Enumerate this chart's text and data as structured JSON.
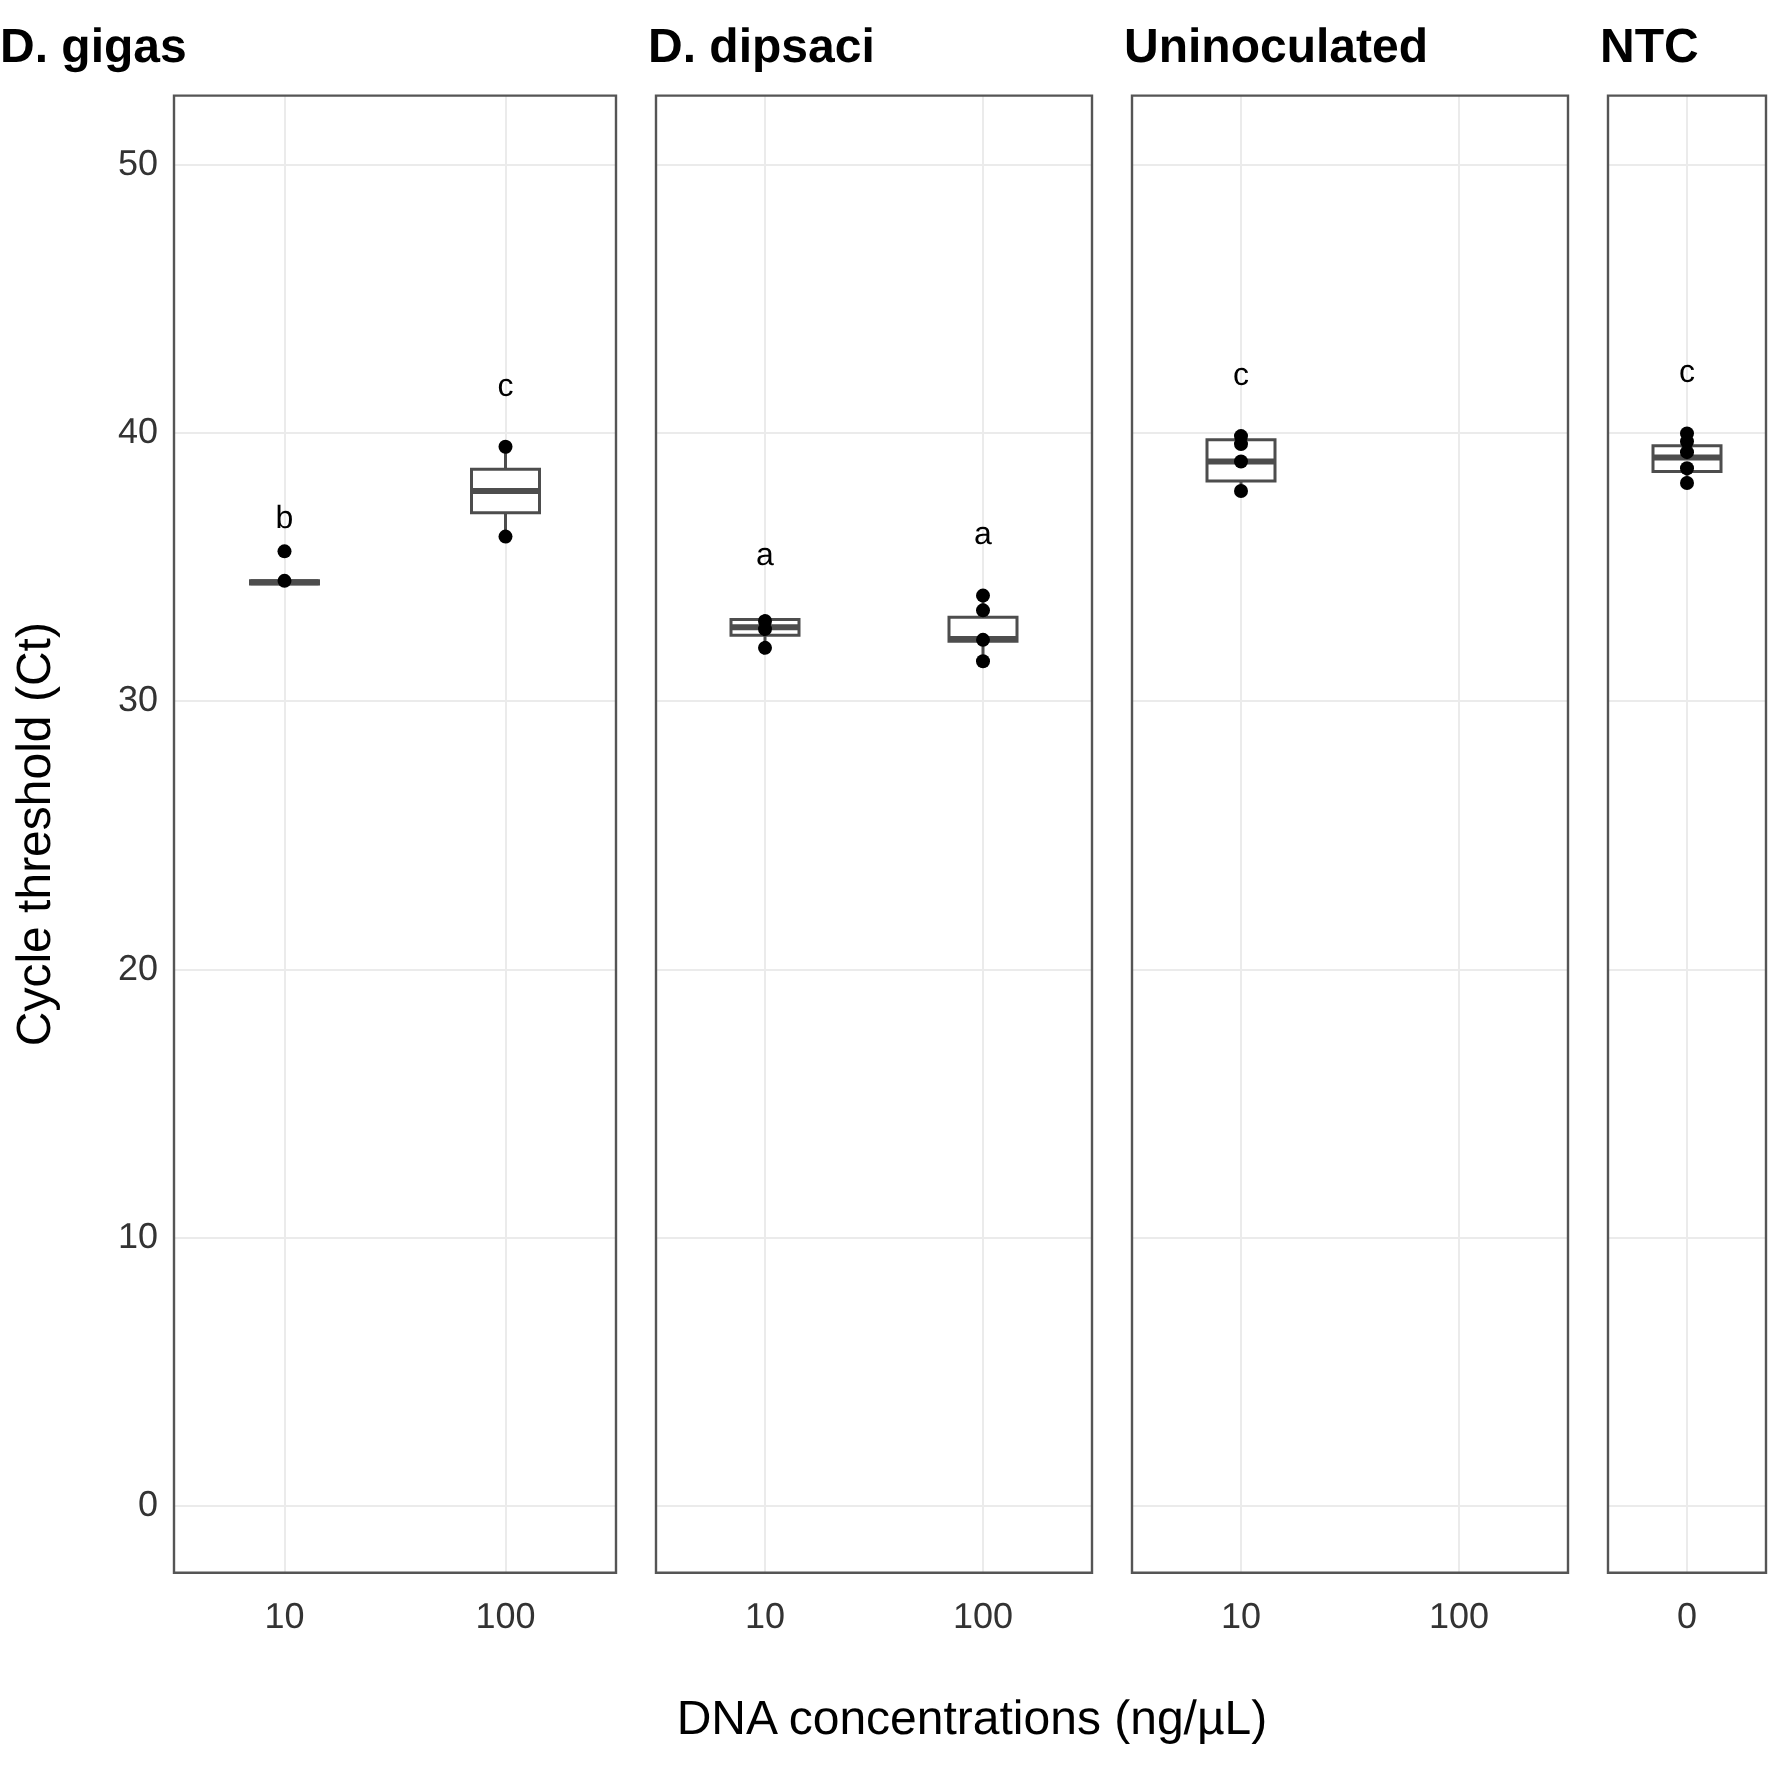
{
  "chart_data": [
    {
      "type": "box",
      "title": "D. gigas",
      "ylabel": "Cycle threshold (Ct)",
      "xlabel": "DNA concentrations (ng/µL)",
      "categories": [
        "10",
        "100"
      ],
      "ylim": [
        -2.5,
        52.6
      ],
      "yticks": [
        0,
        10,
        20,
        30,
        40,
        50
      ],
      "grid": true,
      "legend": false,
      "marker": "circle",
      "boxes": [
        {
          "low": 34.3,
          "q1": 34.38,
          "median": 34.45,
          "q3": 34.5,
          "high": 34.55
        },
        {
          "low": 36.15,
          "q1": 37.04,
          "median": 37.85,
          "q3": 38.66,
          "high": 39.5
        }
      ],
      "series": [
        {
          "type": "scatter",
          "color": "#000000",
          "x": [
            "10",
            "10",
            "100",
            "100"
          ],
          "values": [
            34.5,
            35.6,
            39.5,
            36.15
          ]
        }
      ],
      "annotations": [
        "b",
        "c"
      ]
    },
    {
      "type": "box",
      "title": "D. dipsaci",
      "categories": [
        "10",
        "100"
      ],
      "ylim": [
        -2.5,
        52.6
      ],
      "yticks": [
        0,
        10,
        20,
        30,
        40,
        50
      ],
      "tick_labels": "x",
      "grid": true,
      "legend": false,
      "marker": "circle",
      "boxes": [
        {
          "low": 32.0,
          "q1": 32.47,
          "median": 32.77,
          "q3": 33.06,
          "high": 33.2
        },
        {
          "low": 31.5,
          "q1": 32.25,
          "median": 32.33,
          "q3": 33.14,
          "high": 33.95
        }
      ],
      "series": [
        {
          "type": "scatter",
          "color": "#000000",
          "x": [
            "10",
            "10",
            "10",
            "100",
            "100",
            "100",
            "100"
          ],
          "values": [
            32.0,
            32.7,
            33.0,
            33.95,
            33.4,
            32.3,
            31.5
          ]
        }
      ],
      "annotations": [
        "a",
        "a"
      ]
    },
    {
      "type": "box",
      "title": "Uninoculated",
      "categories": [
        "10",
        "100"
      ],
      "ylim": [
        -2.5,
        52.6
      ],
      "yticks": [
        0,
        10,
        20,
        30,
        40,
        50
      ],
      "tick_labels": "x",
      "grid": true,
      "legend": false,
      "marker": "circle",
      "boxes": [
        {
          "low": 37.85,
          "q1": 38.22,
          "median": 38.95,
          "q3": 39.76,
          "high": 39.9
        },
        null
      ],
      "series": [
        {
          "type": "scatter",
          "color": "#000000",
          "x": [
            "10",
            "10",
            "10",
            "10"
          ],
          "values": [
            39.9,
            39.6,
            38.95,
            37.85
          ]
        }
      ],
      "annotations": [
        "c"
      ]
    },
    {
      "type": "box",
      "title": "NTC",
      "categories": [
        "0"
      ],
      "ylim": [
        -2.5,
        52.6
      ],
      "yticks": [
        0,
        10,
        20,
        30,
        40,
        50
      ],
      "tick_labels": "x",
      "grid": true,
      "legend": false,
      "marker": "circle",
      "boxes": [
        {
          "low": 38.15,
          "q1": 38.58,
          "median": 39.1,
          "q3": 39.54,
          "high": 40.0
        }
      ],
      "series": [
        {
          "type": "scatter",
          "color": "#000000",
          "x": [
            "0",
            "0",
            "0",
            "0",
            "0"
          ],
          "values": [
            40.0,
            39.7,
            39.3,
            38.7,
            38.15
          ]
        }
      ],
      "annotations": [
        "c"
      ]
    }
  ]
}
